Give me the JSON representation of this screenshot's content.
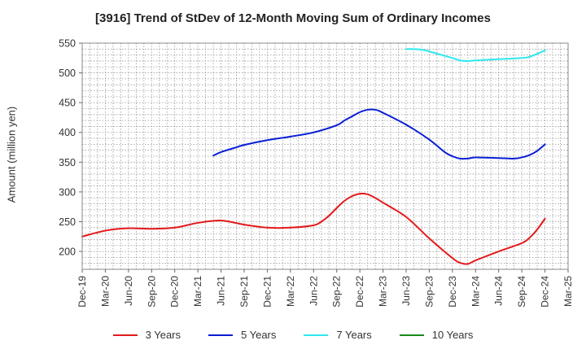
{
  "chart_data": {
    "type": "line",
    "title": "[3916]  Trend of StDev of 12-Month Moving Sum of Ordinary Incomes",
    "ylabel": "Amount (million yen)",
    "xlabel": "",
    "ylim": [
      170,
      550
    ],
    "yticks": [
      200,
      250,
      300,
      350,
      400,
      450,
      500,
      550
    ],
    "x_categories": [
      "Dec-19",
      "Mar-20",
      "Jun-20",
      "Sep-20",
      "Dec-20",
      "Mar-21",
      "Jun-21",
      "Sep-21",
      "Dec-21",
      "Mar-22",
      "Jun-22",
      "Sep-22",
      "Dec-22",
      "Mar-23",
      "Jun-23",
      "Sep-23",
      "Dec-23",
      "Mar-24",
      "Jun-24",
      "Sep-24",
      "Dec-24",
      "Mar-25"
    ],
    "grid": true,
    "legend_position": "bottom",
    "series": [
      {
        "name": "3 Years",
        "color": "#e31a1c",
        "x": [
          "Dec-19",
          "Mar-20",
          "Jun-20",
          "Sep-20",
          "Dec-20",
          "Mar-21",
          "Jun-21",
          "Sep-21",
          "Dec-21",
          "Mar-22",
          "Jun-22",
          "Jul-22",
          "Aug-22",
          "Sep-22",
          "Oct-22",
          "Nov-22",
          "Dec-22",
          "Jan-23",
          "Feb-23",
          "Mar-23",
          "Jun-23",
          "Sep-23",
          "Dec-23",
          "Jan-24",
          "Feb-24",
          "Mar-24",
          "Jun-24",
          "Sep-24",
          "Oct-24",
          "Nov-24",
          "Dec-24"
        ],
        "values": [
          225,
          235,
          239,
          238,
          240,
          248,
          252,
          245,
          240,
          240,
          244,
          250,
          260,
          273,
          285,
          293,
          297,
          296,
          290,
          282,
          258,
          222,
          189,
          181,
          179,
          185,
          200,
          214,
          223,
          237,
          255
        ]
      },
      {
        "name": "5 Years",
        "color": "#0a1ed6",
        "x": [
          "May-21",
          "Jun-21",
          "Aug-21",
          "Sep-21",
          "Dec-21",
          "Mar-22",
          "Jun-22",
          "Sep-22",
          "Oct-22",
          "Nov-22",
          "Dec-22",
          "Jan-23",
          "Feb-23",
          "Mar-23",
          "Jun-23",
          "Sep-23",
          "Nov-23",
          "Dec-23",
          "Jan-24",
          "Feb-24",
          "Mar-24",
          "Jun-24",
          "Aug-24",
          "Sep-24",
          "Oct-24",
          "Nov-24",
          "Dec-24"
        ],
        "values": [
          361,
          367,
          375,
          379,
          387,
          393,
          400,
          412,
          420,
          427,
          434,
          438,
          438,
          433,
          413,
          388,
          367,
          360,
          356,
          356,
          358,
          357,
          356,
          358,
          362,
          369,
          380
        ]
      },
      {
        "name": "7 Years",
        "color": "#2ee8ee",
        "x": [
          "Jun-23",
          "Jul-23",
          "Aug-23",
          "Sep-23",
          "Dec-23",
          "Jan-24",
          "Feb-24",
          "Mar-24",
          "Jun-24",
          "Sep-24",
          "Oct-24",
          "Nov-24",
          "Dec-24"
        ],
        "values": [
          540,
          540,
          539,
          536,
          525,
          521,
          520,
          521,
          523,
          525,
          527,
          532,
          538
        ]
      },
      {
        "name": "10 Years",
        "color": "#1a8a1a",
        "x": [],
        "values": []
      }
    ]
  }
}
